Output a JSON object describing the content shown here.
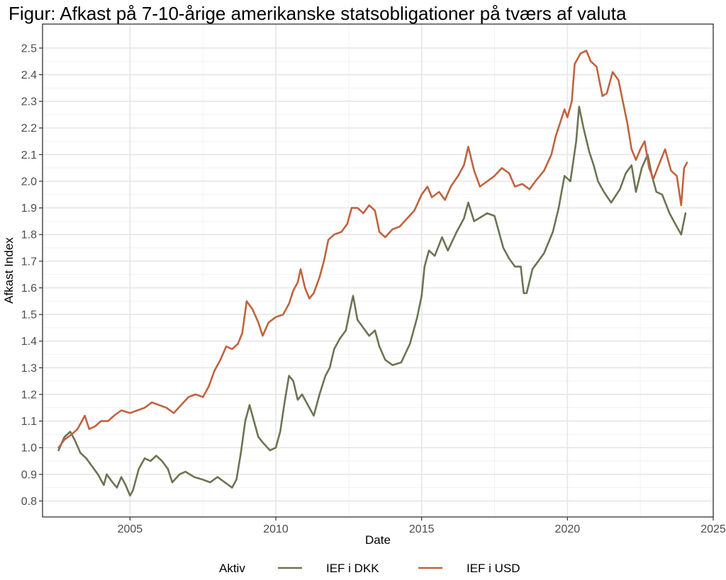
{
  "chart_data": {
    "type": "line",
    "title": "Figur: Afkast på 7-10-årige amerikanske statsobligationer på tværs af valuta",
    "xlabel": "Date",
    "ylabel": "Afkast Index",
    "xlim": [
      2002.0,
      2025.0
    ],
    "ylim": [
      0.74,
      2.59
    ],
    "x_ticks": [
      2005,
      2010,
      2015,
      2020,
      2025
    ],
    "x_tick_labels": [
      "2005",
      "2010",
      "2015",
      "2020",
      "2025"
    ],
    "y_ticks": [
      0.8,
      0.9,
      1.0,
      1.1,
      1.2,
      1.3,
      1.4,
      1.5,
      1.6,
      1.7,
      1.8,
      1.9,
      2.0,
      2.1,
      2.2,
      2.3,
      2.4,
      2.5
    ],
    "y_tick_labels": [
      "0.8",
      "0.9",
      "1.0",
      "1.1",
      "1.2",
      "1.3",
      "1.4",
      "1.5",
      "1.6",
      "1.7",
      "1.8",
      "1.9",
      "2.0",
      "2.1",
      "2.2",
      "2.3",
      "2.4",
      "2.5"
    ],
    "grid": true,
    "legend": {
      "title": "Aktiv",
      "position": "bottom"
    },
    "series": [
      {
        "name": "IEF i DKK",
        "color": "#6b7552",
        "points": [
          [
            2002.55,
            0.99
          ],
          [
            2002.75,
            1.04
          ],
          [
            2002.95,
            1.06
          ],
          [
            2003.1,
            1.03
          ],
          [
            2003.3,
            0.98
          ],
          [
            2003.5,
            0.96
          ],
          [
            2003.7,
            0.93
          ],
          [
            2003.9,
            0.9
          ],
          [
            2004.1,
            0.86
          ],
          [
            2004.2,
            0.9
          ],
          [
            2004.4,
            0.87
          ],
          [
            2004.55,
            0.85
          ],
          [
            2004.7,
            0.89
          ],
          [
            2004.85,
            0.86
          ],
          [
            2005.0,
            0.82
          ],
          [
            2005.1,
            0.84
          ],
          [
            2005.3,
            0.92
          ],
          [
            2005.5,
            0.96
          ],
          [
            2005.7,
            0.95
          ],
          [
            2005.9,
            0.97
          ],
          [
            2006.1,
            0.95
          ],
          [
            2006.3,
            0.92
          ],
          [
            2006.45,
            0.87
          ],
          [
            2006.7,
            0.9
          ],
          [
            2006.9,
            0.91
          ],
          [
            2007.2,
            0.89
          ],
          [
            2007.5,
            0.88
          ],
          [
            2007.75,
            0.87
          ],
          [
            2008.0,
            0.89
          ],
          [
            2008.25,
            0.87
          ],
          [
            2008.5,
            0.85
          ],
          [
            2008.65,
            0.88
          ],
          [
            2008.8,
            0.98
          ],
          [
            2008.95,
            1.1
          ],
          [
            2009.1,
            1.16
          ],
          [
            2009.25,
            1.1
          ],
          [
            2009.4,
            1.04
          ],
          [
            2009.55,
            1.02
          ],
          [
            2009.8,
            0.99
          ],
          [
            2010.0,
            1.0
          ],
          [
            2010.15,
            1.06
          ],
          [
            2010.3,
            1.17
          ],
          [
            2010.45,
            1.27
          ],
          [
            2010.6,
            1.25
          ],
          [
            2010.75,
            1.18
          ],
          [
            2010.9,
            1.2
          ],
          [
            2011.1,
            1.16
          ],
          [
            2011.3,
            1.12
          ],
          [
            2011.5,
            1.2
          ],
          [
            2011.7,
            1.27
          ],
          [
            2011.85,
            1.3
          ],
          [
            2012.0,
            1.37
          ],
          [
            2012.2,
            1.41
          ],
          [
            2012.4,
            1.44
          ],
          [
            2012.55,
            1.52
          ],
          [
            2012.65,
            1.57
          ],
          [
            2012.8,
            1.48
          ],
          [
            2013.0,
            1.45
          ],
          [
            2013.2,
            1.42
          ],
          [
            2013.4,
            1.44
          ],
          [
            2013.55,
            1.38
          ],
          [
            2013.75,
            1.33
          ],
          [
            2014.0,
            1.31
          ],
          [
            2014.3,
            1.32
          ],
          [
            2014.6,
            1.39
          ],
          [
            2014.85,
            1.49
          ],
          [
            2015.0,
            1.57
          ],
          [
            2015.1,
            1.68
          ],
          [
            2015.25,
            1.74
          ],
          [
            2015.45,
            1.72
          ],
          [
            2015.7,
            1.79
          ],
          [
            2015.9,
            1.74
          ],
          [
            2016.2,
            1.81
          ],
          [
            2016.45,
            1.86
          ],
          [
            2016.6,
            1.92
          ],
          [
            2016.8,
            1.85
          ],
          [
            2016.95,
            1.86
          ],
          [
            2017.25,
            1.88
          ],
          [
            2017.5,
            1.87
          ],
          [
            2017.8,
            1.75
          ],
          [
            2018.0,
            1.71
          ],
          [
            2018.2,
            1.68
          ],
          [
            2018.4,
            1.68
          ],
          [
            2018.5,
            1.58
          ],
          [
            2018.6,
            1.58
          ],
          [
            2018.8,
            1.67
          ],
          [
            2019.0,
            1.7
          ],
          [
            2019.2,
            1.73
          ],
          [
            2019.5,
            1.81
          ],
          [
            2019.7,
            1.9
          ],
          [
            2019.9,
            2.02
          ],
          [
            2020.1,
            2.0
          ],
          [
            2020.3,
            2.15
          ],
          [
            2020.4,
            2.28
          ],
          [
            2020.55,
            2.2
          ],
          [
            2020.75,
            2.11
          ],
          [
            2020.9,
            2.06
          ],
          [
            2021.05,
            2.0
          ],
          [
            2021.25,
            1.96
          ],
          [
            2021.5,
            1.92
          ],
          [
            2021.8,
            1.97
          ],
          [
            2022.0,
            2.03
          ],
          [
            2022.2,
            2.06
          ],
          [
            2022.35,
            1.96
          ],
          [
            2022.55,
            2.05
          ],
          [
            2022.75,
            2.1
          ],
          [
            2022.9,
            2.02
          ],
          [
            2023.05,
            1.96
          ],
          [
            2023.25,
            1.95
          ],
          [
            2023.5,
            1.88
          ],
          [
            2023.7,
            1.84
          ],
          [
            2023.9,
            1.8
          ],
          [
            2024.05,
            1.88
          ]
        ]
      },
      {
        "name": "IEF i USD",
        "color": "#c0633e",
        "points": [
          [
            2002.55,
            1.0
          ],
          [
            2002.75,
            1.03
          ],
          [
            2003.0,
            1.05
          ],
          [
            2003.2,
            1.07
          ],
          [
            2003.45,
            1.12
          ],
          [
            2003.6,
            1.07
          ],
          [
            2003.8,
            1.08
          ],
          [
            2004.0,
            1.1
          ],
          [
            2004.25,
            1.1
          ],
          [
            2004.45,
            1.12
          ],
          [
            2004.7,
            1.14
          ],
          [
            2005.0,
            1.13
          ],
          [
            2005.25,
            1.14
          ],
          [
            2005.5,
            1.15
          ],
          [
            2005.75,
            1.17
          ],
          [
            2006.0,
            1.16
          ],
          [
            2006.25,
            1.15
          ],
          [
            2006.5,
            1.13
          ],
          [
            2006.75,
            1.16
          ],
          [
            2007.0,
            1.19
          ],
          [
            2007.25,
            1.2
          ],
          [
            2007.5,
            1.19
          ],
          [
            2007.7,
            1.23
          ],
          [
            2007.9,
            1.29
          ],
          [
            2008.1,
            1.33
          ],
          [
            2008.3,
            1.38
          ],
          [
            2008.5,
            1.37
          ],
          [
            2008.7,
            1.39
          ],
          [
            2008.85,
            1.43
          ],
          [
            2009.0,
            1.55
          ],
          [
            2009.2,
            1.52
          ],
          [
            2009.4,
            1.47
          ],
          [
            2009.55,
            1.42
          ],
          [
            2009.75,
            1.47
          ],
          [
            2010.0,
            1.49
          ],
          [
            2010.25,
            1.5
          ],
          [
            2010.45,
            1.54
          ],
          [
            2010.6,
            1.59
          ],
          [
            2010.75,
            1.62
          ],
          [
            2010.85,
            1.67
          ],
          [
            2011.0,
            1.6
          ],
          [
            2011.15,
            1.56
          ],
          [
            2011.3,
            1.58
          ],
          [
            2011.5,
            1.64
          ],
          [
            2011.65,
            1.7
          ],
          [
            2011.8,
            1.78
          ],
          [
            2012.0,
            1.8
          ],
          [
            2012.25,
            1.81
          ],
          [
            2012.45,
            1.84
          ],
          [
            2012.6,
            1.9
          ],
          [
            2012.8,
            1.9
          ],
          [
            2013.0,
            1.88
          ],
          [
            2013.2,
            1.91
          ],
          [
            2013.4,
            1.89
          ],
          [
            2013.55,
            1.81
          ],
          [
            2013.75,
            1.79
          ],
          [
            2014.0,
            1.82
          ],
          [
            2014.25,
            1.83
          ],
          [
            2014.5,
            1.86
          ],
          [
            2014.75,
            1.89
          ],
          [
            2015.0,
            1.95
          ],
          [
            2015.2,
            1.98
          ],
          [
            2015.35,
            1.94
          ],
          [
            2015.6,
            1.96
          ],
          [
            2015.8,
            1.93
          ],
          [
            2016.0,
            1.98
          ],
          [
            2016.25,
            2.02
          ],
          [
            2016.45,
            2.06
          ],
          [
            2016.6,
            2.13
          ],
          [
            2016.8,
            2.04
          ],
          [
            2017.0,
            1.98
          ],
          [
            2017.25,
            2.0
          ],
          [
            2017.5,
            2.02
          ],
          [
            2017.75,
            2.05
          ],
          [
            2018.0,
            2.03
          ],
          [
            2018.2,
            1.98
          ],
          [
            2018.45,
            1.99
          ],
          [
            2018.7,
            1.97
          ],
          [
            2018.9,
            2.0
          ],
          [
            2019.2,
            2.04
          ],
          [
            2019.45,
            2.1
          ],
          [
            2019.6,
            2.17
          ],
          [
            2019.75,
            2.22
          ],
          [
            2019.9,
            2.27
          ],
          [
            2020.0,
            2.24
          ],
          [
            2020.15,
            2.3
          ],
          [
            2020.25,
            2.44
          ],
          [
            2020.45,
            2.48
          ],
          [
            2020.65,
            2.49
          ],
          [
            2020.8,
            2.45
          ],
          [
            2021.0,
            2.43
          ],
          [
            2021.2,
            2.32
          ],
          [
            2021.35,
            2.33
          ],
          [
            2021.55,
            2.41
          ],
          [
            2021.75,
            2.38
          ],
          [
            2021.9,
            2.3
          ],
          [
            2022.05,
            2.22
          ],
          [
            2022.2,
            2.12
          ],
          [
            2022.35,
            2.08
          ],
          [
            2022.5,
            2.12
          ],
          [
            2022.65,
            2.15
          ],
          [
            2022.8,
            2.05
          ],
          [
            2022.95,
            2.01
          ],
          [
            2023.2,
            2.08
          ],
          [
            2023.35,
            2.12
          ],
          [
            2023.55,
            2.04
          ],
          [
            2023.75,
            2.02
          ],
          [
            2023.9,
            1.91
          ],
          [
            2024.0,
            2.05
          ],
          [
            2024.1,
            2.07
          ]
        ]
      }
    ]
  }
}
